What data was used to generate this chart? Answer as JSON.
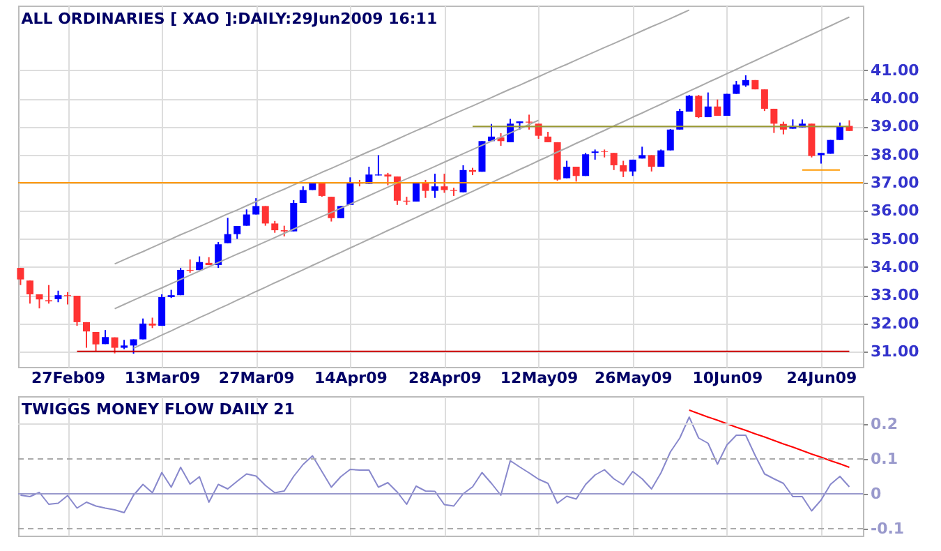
{
  "chart_data": [
    {
      "type": "candlestick",
      "title": "ALL ORDINARIES [ XAO ]:DAILY:29Jun2009 16:11",
      "categories": [
        null,
        null,
        null,
        null,
        null,
        "27Feb09",
        null,
        null,
        null,
        null,
        null,
        null,
        null,
        null,
        null,
        "13Mar09",
        null,
        null,
        null,
        null,
        null,
        null,
        null,
        null,
        null,
        "27Mar09",
        null,
        null,
        null,
        null,
        null,
        null,
        null,
        null,
        null,
        "14Apr09",
        null,
        null,
        null,
        null,
        null,
        null,
        null,
        null,
        null,
        "28Apr09",
        null,
        null,
        null,
        null,
        null,
        null,
        null,
        null,
        null,
        "12May09",
        null,
        null,
        null,
        null,
        null,
        null,
        null,
        null,
        null,
        "26May09",
        null,
        null,
        null,
        null,
        null,
        null,
        null,
        null,
        null,
        "10Jun09",
        null,
        null,
        null,
        null,
        null,
        null,
        null,
        null,
        null,
        "24Jun09",
        null,
        null,
        null
      ],
      "ohlc": [
        [
          33.97,
          33.97,
          33.36,
          33.56
        ],
        [
          33.52,
          33.52,
          32.7,
          33.03
        ],
        [
          33.03,
          33.03,
          32.53,
          32.85
        ],
        [
          32.82,
          33.36,
          32.7,
          32.78
        ],
        [
          32.86,
          33.16,
          32.75,
          33.0
        ],
        [
          33.0,
          33.11,
          32.67,
          32.97
        ],
        [
          32.98,
          32.98,
          31.91,
          32.04
        ],
        [
          32.04,
          32.04,
          31.13,
          31.71
        ],
        [
          31.69,
          31.69,
          31.02,
          31.25
        ],
        [
          31.26,
          31.76,
          31.26,
          31.51
        ],
        [
          31.5,
          31.5,
          30.93,
          31.13
        ],
        [
          31.13,
          31.41,
          31.08,
          31.21
        ],
        [
          31.21,
          31.43,
          30.92,
          31.43
        ],
        [
          31.43,
          32.17,
          31.43,
          31.99
        ],
        [
          31.99,
          32.2,
          31.83,
          31.92
        ],
        [
          31.91,
          33.03,
          31.91,
          32.93
        ],
        [
          32.93,
          33.19,
          32.9,
          33.0
        ],
        [
          33.0,
          33.97,
          33.0,
          33.9
        ],
        [
          33.9,
          34.27,
          33.8,
          33.87
        ],
        [
          33.89,
          34.38,
          33.89,
          34.18
        ],
        [
          34.15,
          34.35,
          34.07,
          34.07
        ],
        [
          34.07,
          34.89,
          33.97,
          34.81
        ],
        [
          34.85,
          35.75,
          34.85,
          35.17
        ],
        [
          35.17,
          35.46,
          35.0,
          35.46
        ],
        [
          35.47,
          36.05,
          35.47,
          35.87
        ],
        [
          35.87,
          36.45,
          35.87,
          36.17
        ],
        [
          36.17,
          36.17,
          35.47,
          35.55
        ],
        [
          35.55,
          35.64,
          35.22,
          35.31
        ],
        [
          35.31,
          35.47,
          35.09,
          35.27
        ],
        [
          35.27,
          36.38,
          35.27,
          36.28
        ],
        [
          36.28,
          36.87,
          36.28,
          36.74
        ],
        [
          36.74,
          37.0,
          36.74,
          36.99
        ],
        [
          36.99,
          36.99,
          36.5,
          36.53
        ],
        [
          36.5,
          36.5,
          35.62,
          35.74
        ],
        [
          35.74,
          36.17,
          35.74,
          36.17
        ],
        [
          36.21,
          37.19,
          36.21,
          36.99
        ],
        [
          37.0,
          37.1,
          36.87,
          36.97
        ],
        [
          36.96,
          37.57,
          36.96,
          37.29
        ],
        [
          37.26,
          37.98,
          37.26,
          37.29
        ],
        [
          37.29,
          37.35,
          36.91,
          37.22
        ],
        [
          37.22,
          37.22,
          36.21,
          36.36
        ],
        [
          36.36,
          36.5,
          36.21,
          36.33
        ],
        [
          36.33,
          36.99,
          36.33,
          36.99
        ],
        [
          36.99,
          37.1,
          36.46,
          36.71
        ],
        [
          36.71,
          37.32,
          36.46,
          36.87
        ],
        [
          36.87,
          37.32,
          36.64,
          36.74
        ],
        [
          36.74,
          36.82,
          36.53,
          36.71
        ],
        [
          36.66,
          37.62,
          36.66,
          37.45
        ],
        [
          37.45,
          37.53,
          37.27,
          37.39
        ],
        [
          37.39,
          38.48,
          37.39,
          38.48
        ],
        [
          38.48,
          39.09,
          38.48,
          38.64
        ],
        [
          38.61,
          38.76,
          38.31,
          38.48
        ],
        [
          38.44,
          39.27,
          38.44,
          39.1
        ],
        [
          39.12,
          39.18,
          38.89,
          39.18
        ],
        [
          39.17,
          39.42,
          38.89,
          39.14
        ],
        [
          39.1,
          39.1,
          38.56,
          38.67
        ],
        [
          38.64,
          38.81,
          38.44,
          38.44
        ],
        [
          38.44,
          38.44,
          37.07,
          37.11
        ],
        [
          37.16,
          37.78,
          37.16,
          37.57
        ],
        [
          37.57,
          37.57,
          37.04,
          37.24
        ],
        [
          37.24,
          38.06,
          37.24,
          38.01
        ],
        [
          38.06,
          38.18,
          37.82,
          38.11
        ],
        [
          38.11,
          38.18,
          37.9,
          38.09
        ],
        [
          38.06,
          38.06,
          37.45,
          37.62
        ],
        [
          37.62,
          37.78,
          37.2,
          37.4
        ],
        [
          37.4,
          37.82,
          37.24,
          37.82
        ],
        [
          37.86,
          38.28,
          37.86,
          37.98
        ],
        [
          37.98,
          37.98,
          37.4,
          37.57
        ],
        [
          37.57,
          38.18,
          37.57,
          38.15
        ],
        [
          38.15,
          38.91,
          38.15,
          38.89
        ],
        [
          38.89,
          39.63,
          38.89,
          39.55
        ],
        [
          39.53,
          40.12,
          39.53,
          40.09
        ],
        [
          40.09,
          40.12,
          39.3,
          39.33
        ],
        [
          39.33,
          40.21,
          39.33,
          39.71
        ],
        [
          39.71,
          39.96,
          39.38,
          39.38
        ],
        [
          39.38,
          40.16,
          39.38,
          40.16
        ],
        [
          40.16,
          40.62,
          40.16,
          40.49
        ],
        [
          40.46,
          40.82,
          40.41,
          40.65
        ],
        [
          40.65,
          40.65,
          40.32,
          40.32
        ],
        [
          40.32,
          40.32,
          39.55,
          39.63
        ],
        [
          39.63,
          39.63,
          38.77,
          39.1
        ],
        [
          39.09,
          39.17,
          38.72,
          38.89
        ],
        [
          38.92,
          39.25,
          38.92,
          39.02
        ],
        [
          38.97,
          39.25,
          38.97,
          39.1
        ],
        [
          39.1,
          39.1,
          37.9,
          37.95
        ],
        [
          37.98,
          38.06,
          37.68,
          38.06
        ],
        [
          38.03,
          38.52,
          38.03,
          38.52
        ],
        [
          38.52,
          39.14,
          38.52,
          39.0
        ],
        [
          39.02,
          39.22,
          38.84,
          38.84
        ]
      ],
      "colors": [
        "#ff3333",
        "#ff3333",
        "#ff3333",
        "#ff3333",
        "#0000ff",
        "#ff3333",
        "#ff3333",
        "#ff3333",
        "#ff3333",
        "#0000ff",
        "#ff3333",
        "#0000ff",
        "#0000ff",
        "#0000ff",
        "#ff3333",
        "#0000ff",
        "#0000ff",
        "#0000ff",
        "#ff3333",
        "#0000ff",
        "#ff3333",
        "#0000ff",
        "#0000ff",
        "#0000ff",
        "#0000ff",
        "#0000ff",
        "#ff3333",
        "#ff3333",
        "#ff3333",
        "#0000ff",
        "#0000ff",
        "#0000ff",
        "#ff3333",
        "#ff3333",
        "#0000ff",
        "#0000ff",
        "#ff3333",
        "#0000ff",
        "#0000ff",
        "#ff3333",
        "#ff3333",
        "#ff3333",
        "#0000ff",
        "#ff3333",
        "#0000ff",
        "#ff3333",
        "#ff3333",
        "#0000ff",
        "#ff3333",
        "#0000ff",
        "#0000ff",
        "#ff3333",
        "#0000ff",
        "#0000ff",
        "#ff3333",
        "#ff3333",
        "#ff3333",
        "#ff3333",
        "#0000ff",
        "#ff3333",
        "#0000ff",
        "#0000ff",
        "#ff3333",
        "#ff3333",
        "#ff3333",
        "#0000ff",
        "#0000ff",
        "#ff3333",
        "#0000ff",
        "#0000ff",
        "#0000ff",
        "#0000ff",
        "#ff3333",
        "#0000ff",
        "#ff3333",
        "#0000ff",
        "#0000ff",
        "#0000ff",
        "#ff3333",
        "#ff3333",
        "#ff3333",
        "#ff3333",
        "#0000ff",
        "#0000ff",
        "#ff3333",
        "#0000ff",
        "#0000ff",
        "#0000ff",
        "#ff3333"
      ],
      "series": [
        {
          "type": "line",
          "color": "#aaaaaa",
          "values": [
            null,
            null,
            null,
            null,
            null,
            null,
            null,
            null,
            null,
            null,
            34.11,
            34.26,
            34.41,
            34.55,
            34.7,
            34.85,
            35.0,
            35.15,
            35.29,
            35.44,
            35.59,
            35.74,
            35.89,
            36.03,
            36.18,
            36.33,
            36.48,
            36.63,
            36.77,
            36.92,
            37.07,
            37.22,
            37.37,
            37.51,
            37.66,
            37.81,
            37.96,
            38.11,
            38.25,
            38.4,
            38.55,
            38.7,
            38.85,
            38.99,
            39.14,
            39.29,
            39.44,
            39.59,
            39.73,
            39.88,
            40.03,
            40.18,
            40.33,
            40.47,
            40.62,
            40.77,
            40.92,
            41.07,
            41.21,
            41.36,
            41.51,
            41.66,
            41.81,
            41.95,
            42.1,
            42.25,
            42.4,
            42.55,
            42.69,
            42.84,
            42.99,
            43.14,
            null,
            null,
            null,
            null,
            null,
            null,
            null,
            null,
            null,
            null,
            null,
            null,
            null,
            null,
            null,
            null,
            null
          ]
        },
        {
          "type": "line",
          "color": "#aaaaaa",
          "values": [
            null,
            null,
            null,
            null,
            null,
            null,
            null,
            null,
            null,
            null,
            32.52,
            32.67,
            32.82,
            32.97,
            33.12,
            33.26,
            33.41,
            33.56,
            33.71,
            33.86,
            34.01,
            34.16,
            34.31,
            34.46,
            34.6,
            34.75,
            34.9,
            35.05,
            35.2,
            35.35,
            35.5,
            35.65,
            35.8,
            35.94,
            36.09,
            36.24,
            36.39,
            36.54,
            36.69,
            36.84,
            36.99,
            37.14,
            37.28,
            37.43,
            37.58,
            37.73,
            37.88,
            38.03,
            38.18,
            38.33,
            38.48,
            38.62,
            38.77,
            38.92,
            39.07,
            39.22,
            null,
            null,
            null,
            null,
            null,
            null,
            null,
            null,
            null,
            null,
            null,
            null,
            null,
            null,
            null,
            null,
            null,
            null,
            null,
            null,
            null,
            null,
            null,
            null,
            null,
            null,
            null,
            null,
            null,
            null,
            null,
            null,
            null
          ]
        },
        {
          "type": "line",
          "color": "#aaaaaa",
          "values": [
            null,
            null,
            null,
            null,
            null,
            null,
            null,
            null,
            null,
            null,
            null,
            null,
            31.11,
            31.27,
            31.42,
            31.58,
            31.73,
            31.89,
            32.04,
            32.2,
            32.35,
            32.51,
            32.66,
            32.82,
            32.97,
            33.13,
            33.28,
            33.44,
            33.59,
            33.75,
            33.9,
            34.06,
            34.21,
            34.37,
            34.52,
            34.68,
            34.83,
            34.99,
            35.14,
            35.3,
            35.45,
            35.61,
            35.76,
            35.92,
            36.07,
            36.23,
            36.38,
            36.54,
            36.69,
            36.85,
            37.0,
            37.16,
            37.31,
            37.47,
            37.62,
            37.78,
            37.93,
            38.09,
            38.24,
            38.4,
            38.55,
            38.71,
            38.86,
            39.02,
            39.17,
            39.33,
            39.48,
            39.64,
            39.79,
            39.95,
            40.1,
            40.26,
            40.41,
            40.57,
            40.72,
            40.88,
            41.03,
            41.19,
            41.34,
            41.5,
            41.65,
            41.81,
            41.96,
            42.12,
            42.27,
            42.43,
            42.58,
            42.74,
            42.89
          ]
        },
        {
          "type": "line",
          "color": "#cc0000",
          "values": [
            null,
            null,
            null,
            null,
            null,
            null,
            31,
            31,
            31,
            31,
            31,
            31,
            31,
            31,
            31,
            31,
            31,
            31,
            31,
            31,
            31,
            31,
            31,
            31,
            31,
            31,
            31,
            31,
            31,
            31,
            31,
            31,
            31,
            31,
            31,
            31,
            31,
            31,
            31,
            31,
            31,
            31,
            31,
            31,
            31,
            31,
            31,
            31,
            31,
            31,
            31,
            31,
            31,
            31,
            31,
            31,
            31,
            31,
            31,
            31,
            31,
            31,
            31,
            31,
            31,
            31,
            31,
            31,
            31,
            31,
            31,
            31,
            31,
            31,
            31,
            31,
            31,
            31,
            31,
            31,
            31,
            31,
            31,
            31,
            31,
            31,
            31,
            31,
            31
          ]
        },
        {
          "type": "line",
          "color": "#999933",
          "values": [
            null,
            null,
            null,
            null,
            null,
            null,
            null,
            null,
            null,
            null,
            null,
            null,
            null,
            null,
            null,
            null,
            null,
            null,
            null,
            null,
            null,
            null,
            null,
            null,
            null,
            null,
            null,
            null,
            null,
            null,
            null,
            null,
            null,
            null,
            null,
            null,
            null,
            null,
            null,
            null,
            null,
            null,
            null,
            null,
            null,
            null,
            null,
            null,
            39,
            39,
            39,
            39,
            39,
            39,
            39,
            39,
            39,
            39,
            39,
            39,
            39,
            39,
            39,
            39,
            39,
            39,
            39,
            39,
            39,
            39,
            39,
            39,
            39,
            39,
            39,
            39,
            39,
            39,
            39,
            39,
            39,
            39,
            39,
            39,
            39,
            39,
            39,
            39,
            39
          ]
        },
        {
          "type": "line",
          "color": "#ff9900",
          "values": [
            null,
            null,
            null,
            null,
            null,
            null,
            null,
            null,
            null,
            null,
            null,
            null,
            null,
            null,
            null,
            null,
            null,
            null,
            null,
            null,
            null,
            null,
            null,
            null,
            null,
            null,
            null,
            null,
            null,
            null,
            null,
            null,
            null,
            null,
            null,
            null,
            null,
            null,
            null,
            null,
            null,
            null,
            null,
            null,
            null,
            null,
            null,
            null,
            null,
            null,
            null,
            null,
            null,
            null,
            null,
            null,
            null,
            null,
            null,
            null,
            null,
            null,
            null,
            null,
            null,
            null,
            null,
            null,
            null,
            null,
            null,
            null,
            null,
            null,
            null,
            null,
            null,
            null,
            null,
            null,
            null,
            null,
            null,
            37.45,
            37.45,
            37.45,
            37.45,
            37.45,
            null
          ]
        }
      ],
      "ref_lines": [
        {
          "axis": "y",
          "value": 37,
          "color": "#ff9900"
        }
      ],
      "ylim": [
        30.45,
        43.3
      ],
      "yticks": [
        {
          "value": 31,
          "label": "31.00"
        },
        {
          "value": 32,
          "label": "32.00"
        },
        {
          "value": 33,
          "label": "33.00"
        },
        {
          "value": 34,
          "label": "34.00"
        },
        {
          "value": 35,
          "label": "35.00"
        },
        {
          "value": 36,
          "label": "36.00"
        },
        {
          "value": 37,
          "label": "37.00"
        },
        {
          "value": 38,
          "label": "38.00"
        },
        {
          "value": 39,
          "label": "39.00"
        },
        {
          "value": 40,
          "label": "40.00"
        },
        {
          "value": 41,
          "label": "41.00"
        }
      ],
      "grid": true
    },
    {
      "type": "line",
      "title": "TWIGGS MONEY FLOW DAILY 21",
      "categories": [
        null,
        null,
        null,
        null,
        null,
        null,
        null,
        null,
        null,
        null,
        null,
        null,
        null,
        null,
        null,
        null,
        null,
        null,
        null,
        null,
        null,
        null,
        null,
        null,
        null,
        null,
        null,
        null,
        null,
        null,
        null,
        null,
        null,
        null,
        null,
        null,
        null,
        null,
        null,
        null,
        null,
        null,
        null,
        null,
        null,
        null,
        null,
        null,
        null,
        null,
        null,
        null,
        null,
        null,
        null,
        null,
        null,
        null,
        null,
        null,
        null,
        null,
        null,
        null,
        null,
        null,
        null,
        null,
        null,
        null,
        null,
        null,
        null,
        null,
        null,
        null,
        null,
        null,
        null,
        null,
        null,
        null,
        null,
        null,
        null,
        null,
        null,
        null,
        null
      ],
      "series": [
        {
          "color": "#8888cc",
          "values": [
            -0.004,
            -0.008,
            0.004,
            -0.03,
            -0.027,
            -0.005,
            -0.041,
            -0.024,
            -0.035,
            -0.041,
            -0.046,
            -0.054,
            -0.004,
            0.027,
            0.003,
            0.061,
            0.019,
            0.076,
            0.028,
            0.049,
            -0.024,
            0.027,
            0.014,
            0.036,
            0.057,
            0.051,
            0.024,
            0.003,
            0.008,
            0.05,
            0.084,
            0.109,
            0.064,
            0.019,
            0.049,
            0.07,
            0.068,
            0.068,
            0.019,
            0.032,
            0.005,
            -0.03,
            0.022,
            0.008,
            0.007,
            -0.031,
            -0.035,
            0.0,
            0.02,
            0.061,
            0.03,
            -0.004,
            0.095,
            0.077,
            0.06,
            0.042,
            0.03,
            -0.027,
            -0.007,
            -0.015,
            0.027,
            0.054,
            0.069,
            0.043,
            0.026,
            0.064,
            0.043,
            0.014,
            0.06,
            0.12,
            0.16,
            0.22,
            0.16,
            0.145,
            0.085,
            0.14,
            0.168,
            0.168,
            0.11,
            0.057,
            0.043,
            0.03,
            -0.008,
            -0.008,
            -0.049,
            -0.018,
            0.027,
            0.05,
            0.02
          ]
        },
        {
          "color": "#ff0000",
          "values": [
            null,
            null,
            null,
            null,
            null,
            null,
            null,
            null,
            null,
            null,
            null,
            null,
            null,
            null,
            null,
            null,
            null,
            null,
            null,
            null,
            null,
            null,
            null,
            null,
            null,
            null,
            null,
            null,
            null,
            null,
            null,
            null,
            null,
            null,
            null,
            null,
            null,
            null,
            null,
            null,
            null,
            null,
            null,
            null,
            null,
            null,
            null,
            null,
            null,
            null,
            null,
            null,
            null,
            null,
            null,
            null,
            null,
            null,
            null,
            null,
            null,
            null,
            null,
            null,
            null,
            null,
            null,
            null,
            null,
            null,
            null,
            0.24,
            0.23,
            0.22,
            0.211,
            0.201,
            0.191,
            0.182,
            0.172,
            0.163,
            0.153,
            0.143,
            0.134,
            0.124,
            0.114,
            0.105,
            0.095,
            0.086,
            0.076
          ]
        }
      ],
      "ref_lines": [
        {
          "axis": "y",
          "value": 0.2,
          "color": "#dddddd"
        },
        {
          "axis": "y",
          "value": 0,
          "color": "#9999cc"
        },
        {
          "axis": "y",
          "value": 0.1,
          "color": "#aaaaaa",
          "line_style": "dashed"
        },
        {
          "axis": "y",
          "value": -0.1,
          "color": "#aaaaaa",
          "line_style": "dashed"
        }
      ],
      "ylim": [
        -0.12,
        0.28
      ],
      "yticks": [
        -0.1,
        0,
        0.1,
        0.2
      ],
      "grid": "x"
    }
  ]
}
